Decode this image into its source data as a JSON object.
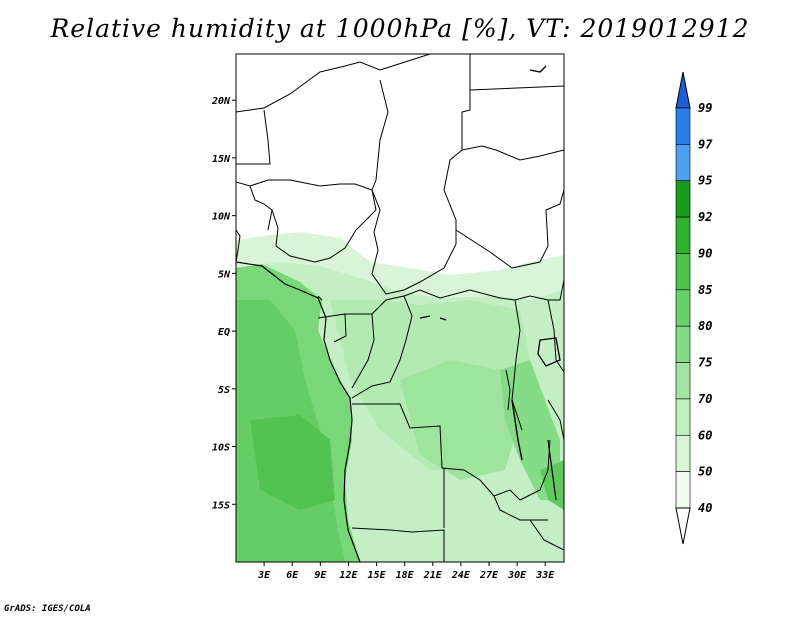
{
  "title": "Relative humidity at 1000hPa [%], VT: 2019012912",
  "credit": "GrADS: IGES/COLA",
  "map": {
    "lon_range": [
      0,
      35
    ],
    "lat_range": [
      -20,
      24
    ],
    "x_ticks": [
      "3E",
      "6E",
      "9E",
      "12E",
      "15E",
      "18E",
      "21E",
      "24E",
      "27E",
      "30E",
      "33E"
    ],
    "y_ticks": [
      "20N",
      "15N",
      "10N",
      "5N",
      "EQ",
      "5S",
      "10S",
      "15S"
    ]
  },
  "colorbar": {
    "levels": [
      "99",
      "97",
      "95",
      "92",
      "90",
      "85",
      "80",
      "75",
      "70",
      "60",
      "50",
      "40"
    ],
    "colors": [
      "#1e5fd4",
      "#2b7fe8",
      "#4ba1f2",
      "#1a9a1a",
      "#2fb02f",
      "#4cc44c",
      "#69d169",
      "#86dc86",
      "#a3e6a3",
      "#bfeebf",
      "#d8f5d8",
      "#f0fcf0"
    ],
    "under_color": "#ffffff"
  }
}
